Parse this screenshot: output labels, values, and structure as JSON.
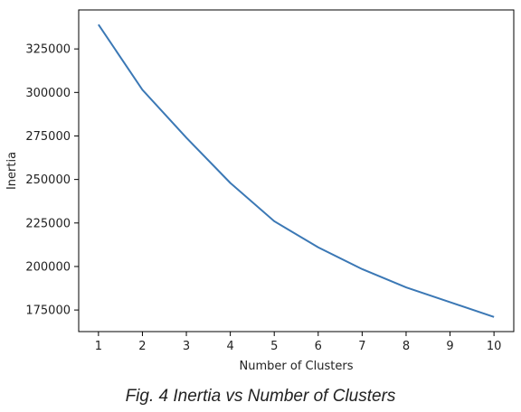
{
  "caption": "Fig. 4 Inertia vs Number of Clusters",
  "chart_data": {
    "type": "line",
    "xlabel": "Number of Clusters",
    "ylabel": "Inertia",
    "x": [
      1,
      2,
      3,
      4,
      5,
      6,
      7,
      8,
      9,
      10
    ],
    "series": [
      {
        "values": [
          339000,
          301500,
          274000,
          248000,
          226000,
          211000,
          198500,
          188000,
          179500,
          171000
        ],
        "color": "#3b78b5"
      }
    ],
    "xticks": [
      "1",
      "2",
      "3",
      "4",
      "5",
      "6",
      "7",
      "8",
      "9",
      "10"
    ],
    "yticks": [
      "175000",
      "200000",
      "225000",
      "250000",
      "275000",
      "300000",
      "325000"
    ],
    "ytick_values": [
      175000,
      200000,
      225000,
      250000,
      275000,
      300000,
      325000
    ],
    "xlim": [
      0.55,
      10.45
    ],
    "ylim": [
      162600,
      347400
    ],
    "grid": false
  }
}
